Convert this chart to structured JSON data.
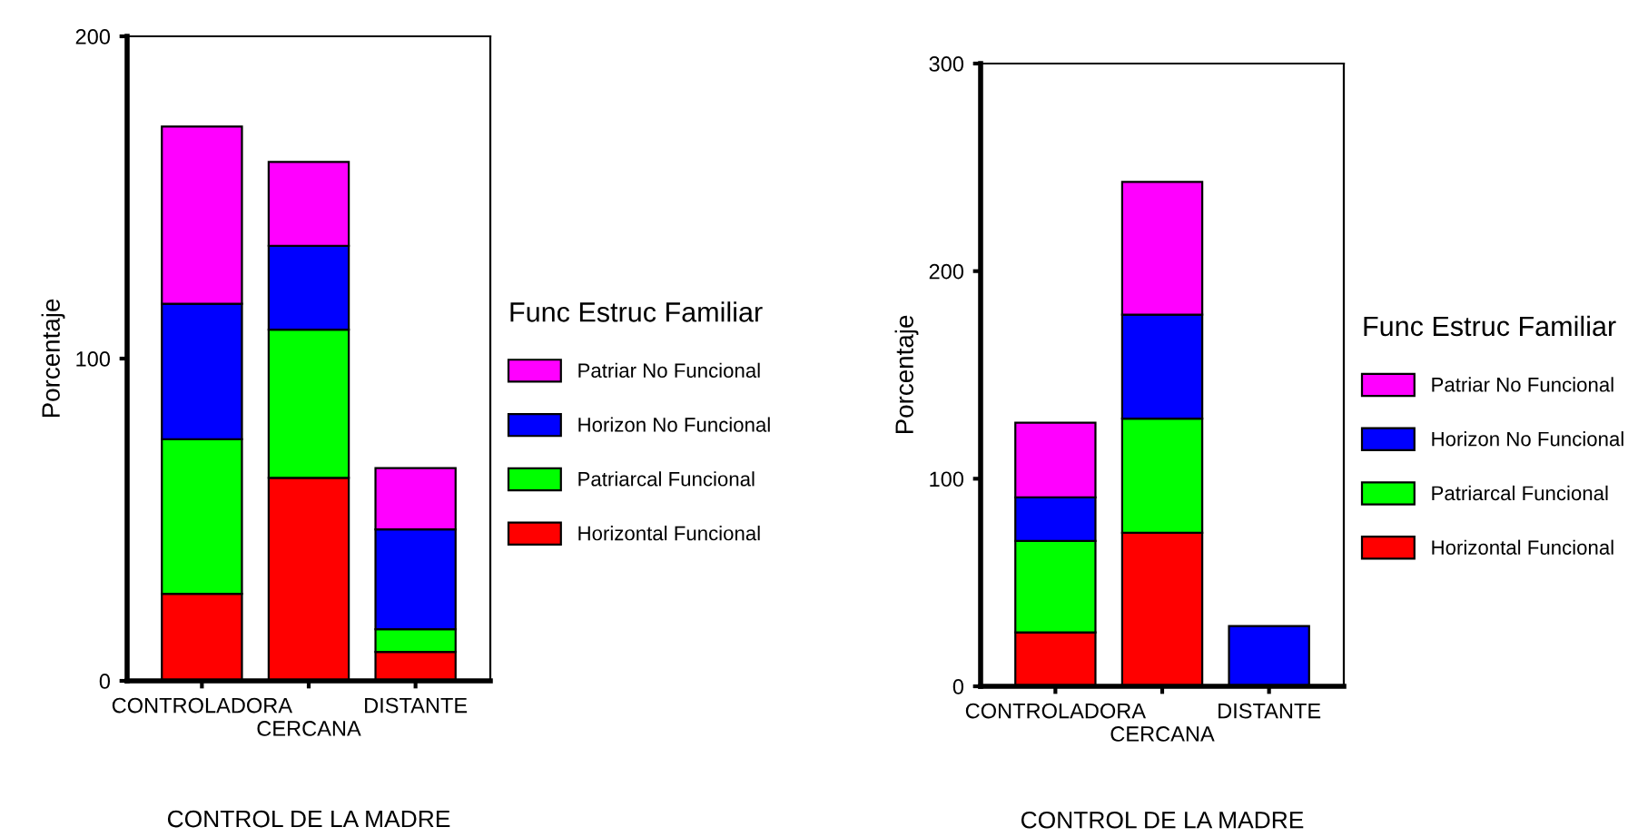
{
  "chart_data": [
    {
      "type": "bar",
      "stacked": true,
      "categories": [
        "CONTROLADORA",
        "CERCANA",
        "DISTANTE"
      ],
      "xlabel": "CONTROL DE LA MADRE",
      "ylabel": "Porcentaje",
      "legend_title": "Func Estruc Familiar",
      "legend": "right",
      "grid": false,
      "ylim": [
        0,
        200
      ],
      "yticks": [
        0,
        100,
        200
      ],
      "series": [
        {
          "name": "Horizontal Funcional",
          "color": "#ff0000",
          "values": [
            27,
            63,
            9
          ]
        },
        {
          "name": "Patriarcal Funcional",
          "color": "#00ff00",
          "values": [
            48,
            46,
            7
          ]
        },
        {
          "name": "Horizon No Funcional",
          "color": "#0000ff",
          "values": [
            42,
            26,
            31
          ]
        },
        {
          "name": "Patriar No Funcional",
          "color": "#ff00ff",
          "values": [
            55,
            26,
            19
          ]
        }
      ]
    },
    {
      "type": "bar",
      "stacked": true,
      "categories": [
        "CONTROLADORA",
        "CERCANA",
        "DISTANTE"
      ],
      "xlabel": "CONTROL DE LA MADRE",
      "ylabel": "Porcentaje",
      "legend_title": "Func Estruc Familiar",
      "legend": "right",
      "grid": false,
      "ylim": [
        0,
        300
      ],
      "yticks": [
        0,
        100,
        200,
        300
      ],
      "series": [
        {
          "name": "Horizontal Funcional",
          "color": "#ff0000",
          "values": [
            26,
            74,
            null
          ]
        },
        {
          "name": "Patriarcal Funcional",
          "color": "#00ff00",
          "values": [
            44,
            55,
            null
          ]
        },
        {
          "name": "Horizon No Funcional",
          "color": "#0000ff",
          "values": [
            21,
            50,
            29
          ]
        },
        {
          "name": "Patriar No Funcional",
          "color": "#ff00ff",
          "values": [
            36,
            64,
            null
          ]
        }
      ]
    }
  ]
}
